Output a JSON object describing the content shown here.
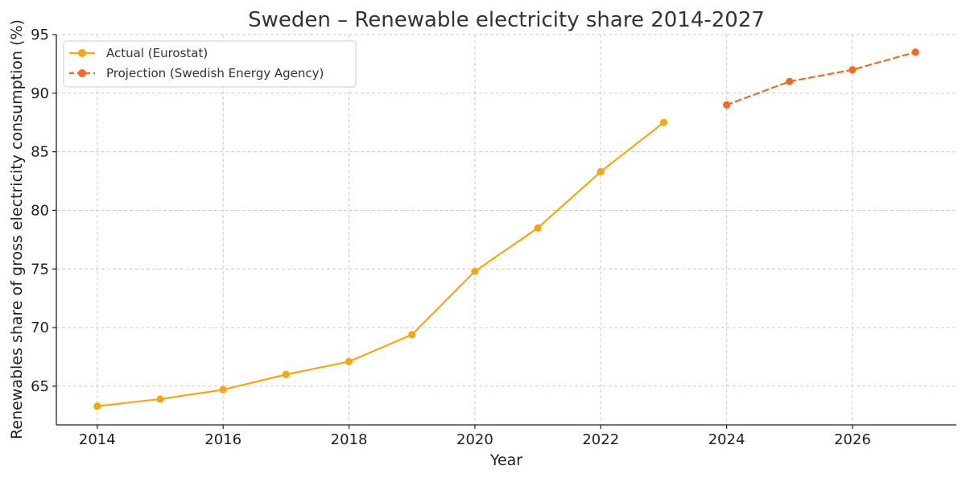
{
  "chart_data": {
    "type": "line",
    "title": "Sweden – Renewable electricity share 2014-2027",
    "xlabel": "Year",
    "ylabel": "Renewables share of gross electricity consumption (%)",
    "xlim": [
      2013.35,
      2027.65
    ],
    "ylim": [
      61.7,
      95
    ],
    "xticks": [
      2014,
      2016,
      2018,
      2020,
      2022,
      2024,
      2026
    ],
    "yticks": [
      65,
      70,
      75,
      80,
      85,
      90,
      95
    ],
    "grid": true,
    "legend_position": "top-left",
    "series": [
      {
        "name": "Actual (Eurostat)",
        "color": "#f5a711",
        "line_style": "solid",
        "marker": "circle",
        "x": [
          2014,
          2015,
          2016,
          2017,
          2018,
          2019,
          2020,
          2021,
          2022,
          2023
        ],
        "y": [
          63.3,
          63.9,
          64.7,
          66.0,
          67.1,
          69.4,
          74.8,
          78.5,
          83.3,
          87.5
        ]
      },
      {
        "name": "Projection (Swedish Energy Agency)",
        "color": "#f06b22",
        "line_style": "dashed",
        "marker": "circle",
        "x": [
          2024,
          2025,
          2026,
          2027
        ],
        "y": [
          89.0,
          91.0,
          92.0,
          93.5
        ]
      }
    ]
  }
}
